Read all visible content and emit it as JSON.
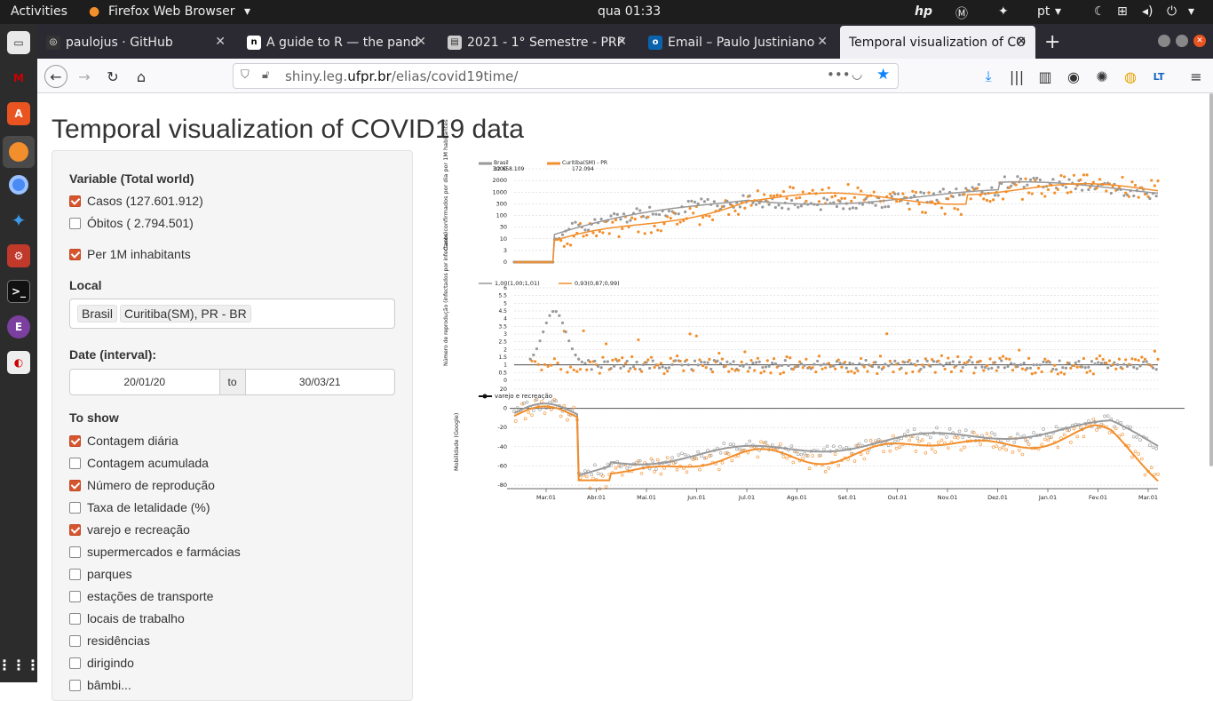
{
  "topbar": {
    "activities": "Activities",
    "app": "Firefox Web Browser",
    "clock": "qua 01:33",
    "lang": "pt"
  },
  "tabs": [
    {
      "label": "paulojus · GitHub",
      "icon": "github-icon"
    },
    {
      "label": "A guide to R — the pand",
      "icon": "n-icon"
    },
    {
      "label": "2021 - 1° Semestre - PRP",
      "icon": "doc-icon"
    },
    {
      "label": "Email – Paulo Justiniano",
      "icon": "outlook-icon"
    },
    {
      "label": "Temporal visualization of CO",
      "icon": "none"
    }
  ],
  "url": {
    "prefix": "shiny.leg.",
    "domain": "ufpr.br",
    "path": "/elias/covid19time/"
  },
  "page": {
    "title": "Temporal visualization of COVID19 data"
  },
  "sidebar": {
    "variable_label": "Variable (Total world)",
    "variables": [
      {
        "label": "Casos (127.601.912)",
        "checked": true
      },
      {
        "label": "Óbitos ( 2.794.501)",
        "checked": false
      }
    ],
    "per1m": {
      "label": "Per 1M inhabitants",
      "checked": true
    },
    "local_label": "Local",
    "local_values": [
      "Brasil",
      "Curitiba(SM), PR - BR"
    ],
    "date_label": "Date (interval):",
    "date_from": "20/01/20",
    "date_to_label": "to",
    "date_to": "30/03/21",
    "show_label": "To show",
    "show_items": [
      {
        "label": "Contagem diária",
        "checked": true
      },
      {
        "label": "Contagem acumulada",
        "checked": false
      },
      {
        "label": "Número de reprodução",
        "checked": true
      },
      {
        "label": "Taxa de letalidade (%)",
        "checked": false
      },
      {
        "label": "varejo e recreação",
        "checked": true
      },
      {
        "label": "supermercados e farmácias",
        "checked": false
      },
      {
        "label": "parques",
        "checked": false
      },
      {
        "label": "estações de transporte",
        "checked": false
      },
      {
        "label": "locais de trabalho",
        "checked": false
      },
      {
        "label": "residências",
        "checked": false
      },
      {
        "label": "dirigindo",
        "checked": false
      },
      {
        "label": "bâmbi...",
        "checked": false
      }
    ]
  },
  "chart_data": [
    {
      "type": "scatter",
      "ylabel": "Casos confirmados por dia por 1M habitantes",
      "yticks": [
        "0",
        "3",
        "10",
        "30",
        "100",
        "300",
        "1000",
        "2000",
        "3000"
      ],
      "log_scale": true,
      "series": [
        {
          "name": "Brasil",
          "total": "12.658.109",
          "color": "#999999"
        },
        {
          "name": "Curitiba(SM) - PR",
          "total": "172.094",
          "color": "#f28e2b"
        }
      ]
    },
    {
      "type": "scatter",
      "ylabel": "Número de reprodução (infectados por infectante)",
      "yticks": [
        "0",
        "0.5",
        "1",
        "1.5",
        "2",
        "2.5",
        "3",
        "3.5",
        "4",
        "4.5",
        "5",
        "5.5",
        "6"
      ],
      "series": [
        {
          "name": "1,00(1,00;1,01)",
          "color": "#999999"
        },
        {
          "name": "0,93(0,87;0,99)",
          "color": "#f28e2b"
        }
      ]
    },
    {
      "type": "line",
      "ylabel": "Mobilidade (Google)",
      "yticks": [
        "20",
        "0",
        "-20",
        "-40",
        "-60",
        "-80"
      ],
      "ylim": [
        -80,
        20
      ],
      "legend": "varejo e recreação",
      "xticks": [
        "Mar.01",
        "Abr.01",
        "Mai.01",
        "Jun.01",
        "Jul.01",
        "Ago.01",
        "Set.01",
        "Out.01",
        "Nov.01",
        "Dez.01",
        "Jan.01",
        "Fev.01",
        "Mar.01"
      ]
    }
  ],
  "colors": {
    "accent": "#d6552e",
    "gray": "#999999",
    "orange": "#f28e2b"
  }
}
